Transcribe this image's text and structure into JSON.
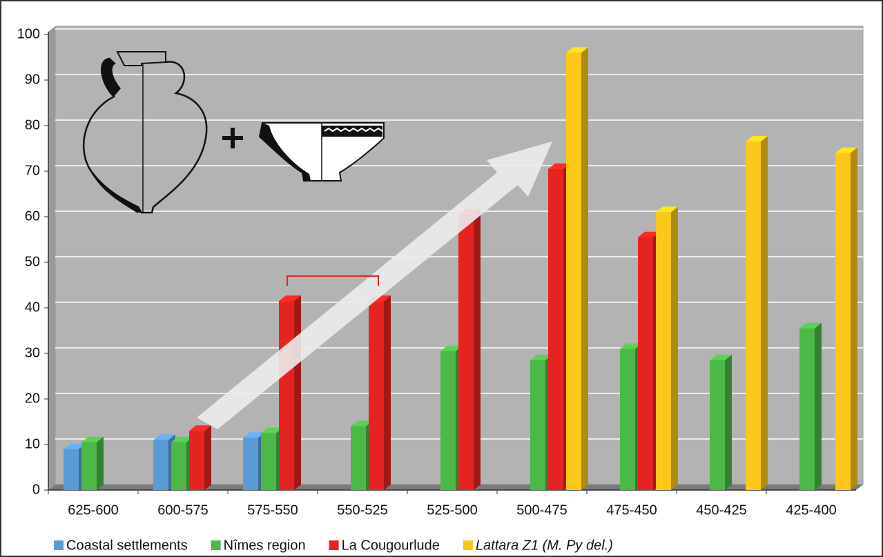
{
  "chart_data": {
    "type": "bar3d",
    "categories": [
      "625-600",
      "600-575",
      "575-550",
      "550-525",
      "525-500",
      "500-475",
      "475-450",
      "450-425",
      "425-400"
    ],
    "series": [
      {
        "name": "Coastal settlements",
        "color": "#5b9bd5",
        "values": [
          9,
          11,
          11.5,
          null,
          null,
          null,
          null,
          null,
          null
        ]
      },
      {
        "name": "Nîmes region",
        "color": "#4cb848",
        "values": [
          10.5,
          10.5,
          12.5,
          14,
          30.5,
          28.5,
          31,
          28.5,
          35.5
        ]
      },
      {
        "name": "La Cougourlude",
        "color": "#e52421",
        "values": [
          null,
          13,
          41.5,
          41.5,
          60.5,
          70.5,
          55.5,
          null,
          null
        ]
      },
      {
        "name": "Lattara Z1  (M. Py del.)",
        "color": "#fcc71a",
        "values": [
          null,
          null,
          null,
          null,
          null,
          96,
          61,
          76.5,
          74
        ]
      }
    ],
    "ylim": [
      0,
      100
    ],
    "yticks": [
      0,
      10,
      20,
      30,
      40,
      50,
      60,
      70,
      80,
      90,
      100
    ],
    "grid": true
  }
}
